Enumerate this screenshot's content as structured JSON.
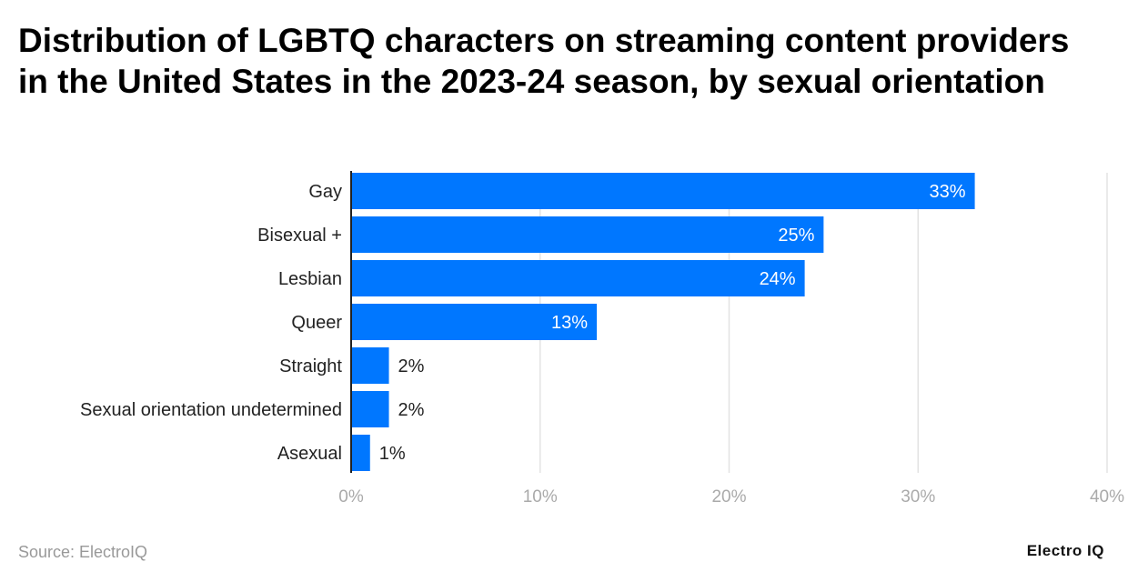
{
  "chart_data": {
    "type": "bar",
    "orientation": "horizontal",
    "title": "Distribution of LGBTQ characters on streaming content providers in the United States in the 2023-24 season, by sexual orientation",
    "categories": [
      "Gay",
      "Bisexual +",
      "Lesbian",
      "Queer",
      "Straight",
      "Sexual orientation undetermined",
      "Asexual"
    ],
    "values": [
      33,
      25,
      24,
      13,
      2,
      2,
      1
    ],
    "data_labels": [
      "33%",
      "25%",
      "24%",
      "13%",
      "2%",
      "2%",
      "1%"
    ],
    "xlim": [
      0,
      40
    ],
    "x_ticks": [
      0,
      10,
      20,
      30,
      40
    ],
    "x_tick_labels": [
      "0%",
      "10%",
      "20%",
      "30%",
      "40%"
    ],
    "grid": true,
    "bar_color": "#0077FF"
  },
  "footer": {
    "source": "Source: ElectroIQ",
    "logo": "Electro IQ"
  }
}
